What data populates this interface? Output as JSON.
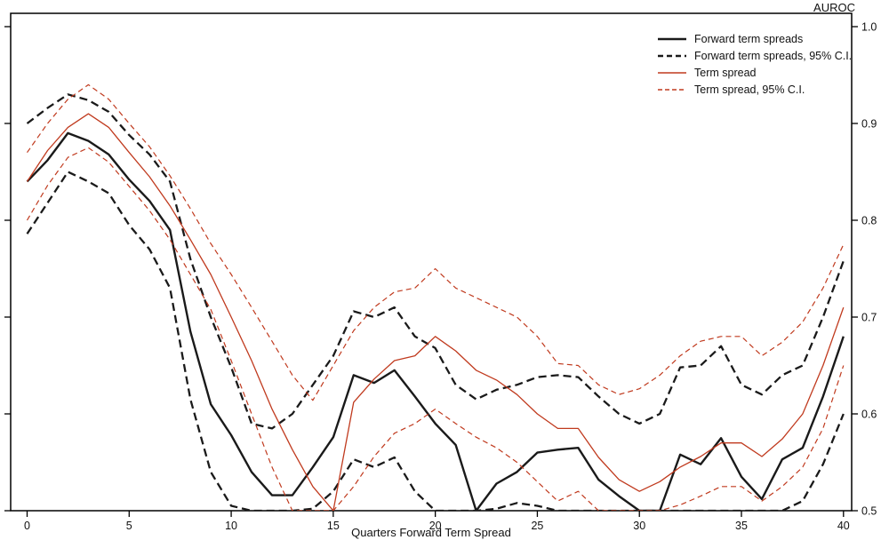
{
  "chart_data": {
    "type": "line",
    "title": "AUROC",
    "xlabel": "Quarters Forward Term Spread",
    "xlim": [
      0,
      40
    ],
    "ylim": [
      0.5,
      1.0
    ],
    "grid": false,
    "legend_position": "top-right-inside",
    "x_ticks": [
      0,
      5,
      10,
      15,
      20,
      25,
      30,
      35,
      40
    ],
    "x_tick_labels": [
      "0",
      "5",
      "10",
      "15",
      "20",
      "25",
      "30",
      "35",
      "40"
    ],
    "y_ticks": [
      0.5,
      0.6,
      0.7,
      0.8,
      0.9,
      1.0
    ],
    "y_tick_labels": [
      "0.5",
      "0.6",
      "0.7",
      "0.8",
      "0.9",
      "1.0"
    ],
    "colors": {
      "forward": "#1a1a1a",
      "term": "#c03a1e"
    },
    "x": [
      0,
      1,
      2,
      3,
      4,
      5,
      6,
      7,
      8,
      9,
      10,
      11,
      12,
      13,
      14,
      15,
      16,
      17,
      18,
      19,
      20,
      21,
      22,
      23,
      24,
      25,
      26,
      27,
      28,
      29,
      30,
      31,
      32,
      33,
      34,
      35,
      36,
      37,
      38,
      39,
      40
    ],
    "series": [
      {
        "name": "Forward term spreads",
        "color": "#1a1a1a",
        "style": "solid",
        "dash": null,
        "width": 2.4,
        "values": [
          0.84,
          0.862,
          0.89,
          0.882,
          0.868,
          0.842,
          0.82,
          0.79,
          0.685,
          0.61,
          0.578,
          0.54,
          0.516,
          0.516,
          0.545,
          0.576,
          0.64,
          0.632,
          0.645,
          0.618,
          0.59,
          0.568,
          0.5,
          0.528,
          0.54,
          0.56,
          0.563,
          0.565,
          0.532,
          0.515,
          0.5,
          0.5,
          0.558,
          0.548,
          0.575,
          0.535,
          0.512,
          0.553,
          0.565,
          0.618,
          0.68
        ]
      },
      {
        "name": "Forward term spreads, 95% C.I. upper",
        "color": "#1a1a1a",
        "style": "dashed",
        "dash": "9 5",
        "width": 2.3,
        "values": [
          0.9,
          0.916,
          0.93,
          0.924,
          0.912,
          0.888,
          0.868,
          0.84,
          0.76,
          0.7,
          0.648,
          0.59,
          0.585,
          0.6,
          0.63,
          0.66,
          0.706,
          0.7,
          0.71,
          0.68,
          0.668,
          0.63,
          0.615,
          0.625,
          0.63,
          0.638,
          0.64,
          0.638,
          0.618,
          0.6,
          0.59,
          0.6,
          0.648,
          0.65,
          0.67,
          0.63,
          0.62,
          0.64,
          0.65,
          0.7,
          0.758
        ]
      },
      {
        "name": "Forward term spreads, 95% C.I. lower",
        "color": "#1a1a1a",
        "style": "dashed",
        "dash": "9 5",
        "width": 2.3,
        "values": [
          0.786,
          0.818,
          0.85,
          0.84,
          0.828,
          0.795,
          0.77,
          0.73,
          0.615,
          0.54,
          0.505,
          0.5,
          0.5,
          0.5,
          0.502,
          0.52,
          0.553,
          0.545,
          0.555,
          0.52,
          0.5,
          0.5,
          0.5,
          0.502,
          0.508,
          0.505,
          0.5,
          0.5,
          0.5,
          0.5,
          0.5,
          0.5,
          0.5,
          0.5,
          0.5,
          0.5,
          0.5,
          0.5,
          0.51,
          0.548,
          0.6
        ]
      },
      {
        "name": "Term spread",
        "color": "#c03a1e",
        "style": "solid",
        "dash": null,
        "width": 1.3,
        "values": [
          0.84,
          0.872,
          0.896,
          0.91,
          0.896,
          0.87,
          0.845,
          0.815,
          0.78,
          0.744,
          0.7,
          0.655,
          0.605,
          0.563,
          0.525,
          0.5,
          0.612,
          0.636,
          0.655,
          0.66,
          0.68,
          0.665,
          0.645,
          0.635,
          0.62,
          0.6,
          0.585,
          0.585,
          0.555,
          0.532,
          0.52,
          0.53,
          0.545,
          0.556,
          0.57,
          0.57,
          0.556,
          0.574,
          0.6,
          0.65,
          0.71
        ]
      },
      {
        "name": "Term spread, 95% C.I. upper",
        "color": "#c03a1e",
        "style": "dashed",
        "dash": "6 4",
        "width": 1.2,
        "values": [
          0.87,
          0.9,
          0.925,
          0.94,
          0.925,
          0.9,
          0.876,
          0.846,
          0.812,
          0.776,
          0.744,
          0.71,
          0.675,
          0.64,
          0.614,
          0.65,
          0.686,
          0.71,
          0.726,
          0.73,
          0.75,
          0.73,
          0.72,
          0.71,
          0.7,
          0.68,
          0.652,
          0.65,
          0.63,
          0.62,
          0.626,
          0.64,
          0.66,
          0.675,
          0.68,
          0.68,
          0.66,
          0.674,
          0.695,
          0.73,
          0.775
        ]
      },
      {
        "name": "Term spread, 95% C.I. lower",
        "color": "#c03a1e",
        "style": "dashed",
        "dash": "6 4",
        "width": 1.2,
        "values": [
          0.8,
          0.836,
          0.865,
          0.875,
          0.86,
          0.835,
          0.81,
          0.78,
          0.744,
          0.708,
          0.655,
          0.6,
          0.545,
          0.5,
          0.5,
          0.5,
          0.525,
          0.556,
          0.58,
          0.59,
          0.605,
          0.59,
          0.576,
          0.565,
          0.55,
          0.53,
          0.51,
          0.52,
          0.5,
          0.5,
          0.5,
          0.5,
          0.506,
          0.515,
          0.525,
          0.525,
          0.51,
          0.525,
          0.545,
          0.585,
          0.65
        ]
      }
    ],
    "legend": [
      {
        "label": "Forward term spreads",
        "color": "#1a1a1a",
        "style": "solid",
        "dash": null,
        "width": 2.6
      },
      {
        "label": "Forward term spreads, 95% C.I.",
        "color": "#1a1a1a",
        "style": "dashed",
        "dash": "6 4",
        "width": 2.6
      },
      {
        "label": "Term spread",
        "color": "#c03a1e",
        "style": "solid",
        "dash": null,
        "width": 1.4
      },
      {
        "label": "Term spread, 95% C.I.",
        "color": "#c03a1e",
        "style": "dashed",
        "dash": "5 3",
        "width": 1.4
      }
    ]
  }
}
